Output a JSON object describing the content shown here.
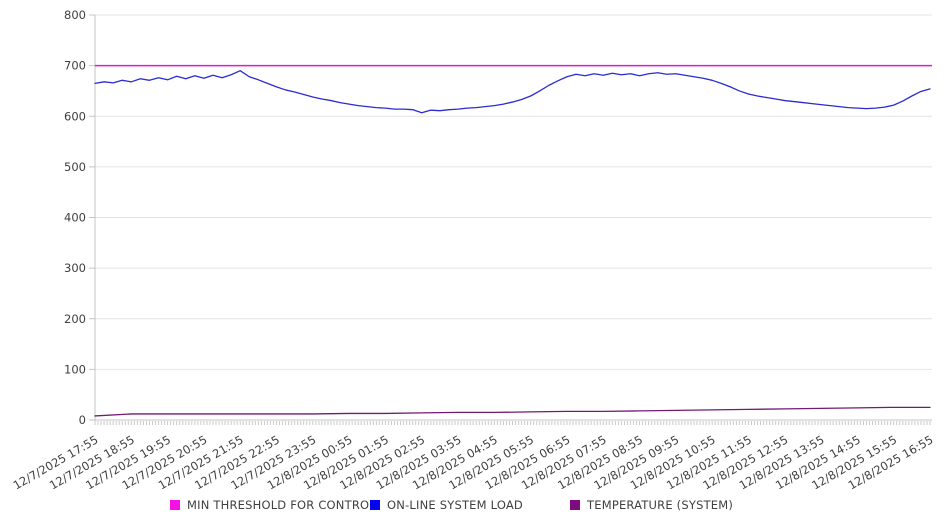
{
  "chart_data": {
    "type": "line",
    "title": "",
    "xlabel": "",
    "ylabel": "",
    "ylim": [
      0,
      800
    ],
    "y_ticks": [
      0,
      100,
      200,
      300,
      400,
      500,
      600,
      700,
      800
    ],
    "grid": true,
    "legend_position": "bottom",
    "x_hours_span": 23,
    "minor_ticks_per_hour": 12,
    "x_tick_labels": [
      "12/7/2025 17:55",
      "12/7/2025 18:55",
      "12/7/2025 19:55",
      "12/7/2025 20:55",
      "12/7/2025 21:55",
      "12/7/2025 22:55",
      "12/7/2025 23:55",
      "12/8/2025 00:55",
      "12/8/2025 01:55",
      "12/8/2025 02:55",
      "12/8/2025 03:55",
      "12/8/2025 04:55",
      "12/8/2025 05:55",
      "12/8/2025 06:55",
      "12/8/2025 07:55",
      "12/8/2025 08:55",
      "12/8/2025 09:55",
      "12/8/2025 10:55",
      "12/8/2025 11:55",
      "12/8/2025 12:55",
      "12/8/2025 13:55",
      "12/8/2025 14:55",
      "12/8/2025 15:55",
      "12/8/2025 16:55"
    ],
    "series": [
      {
        "name": "MIN THRESHOLD FOR CONTROL",
        "type": "constant",
        "value": 700,
        "color": "#D81CD4",
        "legend_color": "#F510E4"
      },
      {
        "name": "ON-LINE SYSTEM LOAD",
        "type": "line",
        "x_step_hours": 0.25,
        "color": "#2B2BD1",
        "legend_color": "#0404EF",
        "values": [
          665,
          668,
          666,
          671,
          668,
          674,
          671,
          676,
          672,
          679,
          674,
          680,
          675,
          681,
          676,
          682,
          690,
          678,
          672,
          665,
          658,
          652,
          648,
          643,
          638,
          634,
          631,
          627,
          624,
          621,
          619,
          617,
          616,
          614,
          614,
          613,
          607,
          612,
          611,
          613,
          614,
          616,
          617,
          619,
          621,
          624,
          628,
          633,
          640,
          650,
          661,
          670,
          678,
          683,
          680,
          684,
          681,
          685,
          682,
          684,
          680,
          684,
          686,
          683,
          684,
          681,
          678,
          675,
          671,
          665,
          658,
          650,
          644,
          640,
          637,
          634,
          631,
          629,
          627,
          625,
          623,
          621,
          619,
          617,
          616,
          615,
          616,
          618,
          622,
          630,
          640,
          649,
          654
        ]
      },
      {
        "name": "TEMPERATURE (SYSTEM)",
        "type": "line",
        "x_step_hours": 1,
        "color": "#731A75",
        "legend_color": "#7D0C80",
        "values": [
          8,
          12,
          12,
          12,
          12,
          12,
          12,
          13,
          13,
          14,
          15,
          15,
          16,
          17,
          17,
          18,
          19,
          20,
          21,
          22,
          23,
          24,
          25,
          25
        ]
      }
    ],
    "colors": {
      "gridline": "#e4e4e4",
      "axis": "#c4c4c4",
      "minor_tick": "#c9c9c9",
      "tick_label": "#404040",
      "background": "#ffffff"
    }
  }
}
